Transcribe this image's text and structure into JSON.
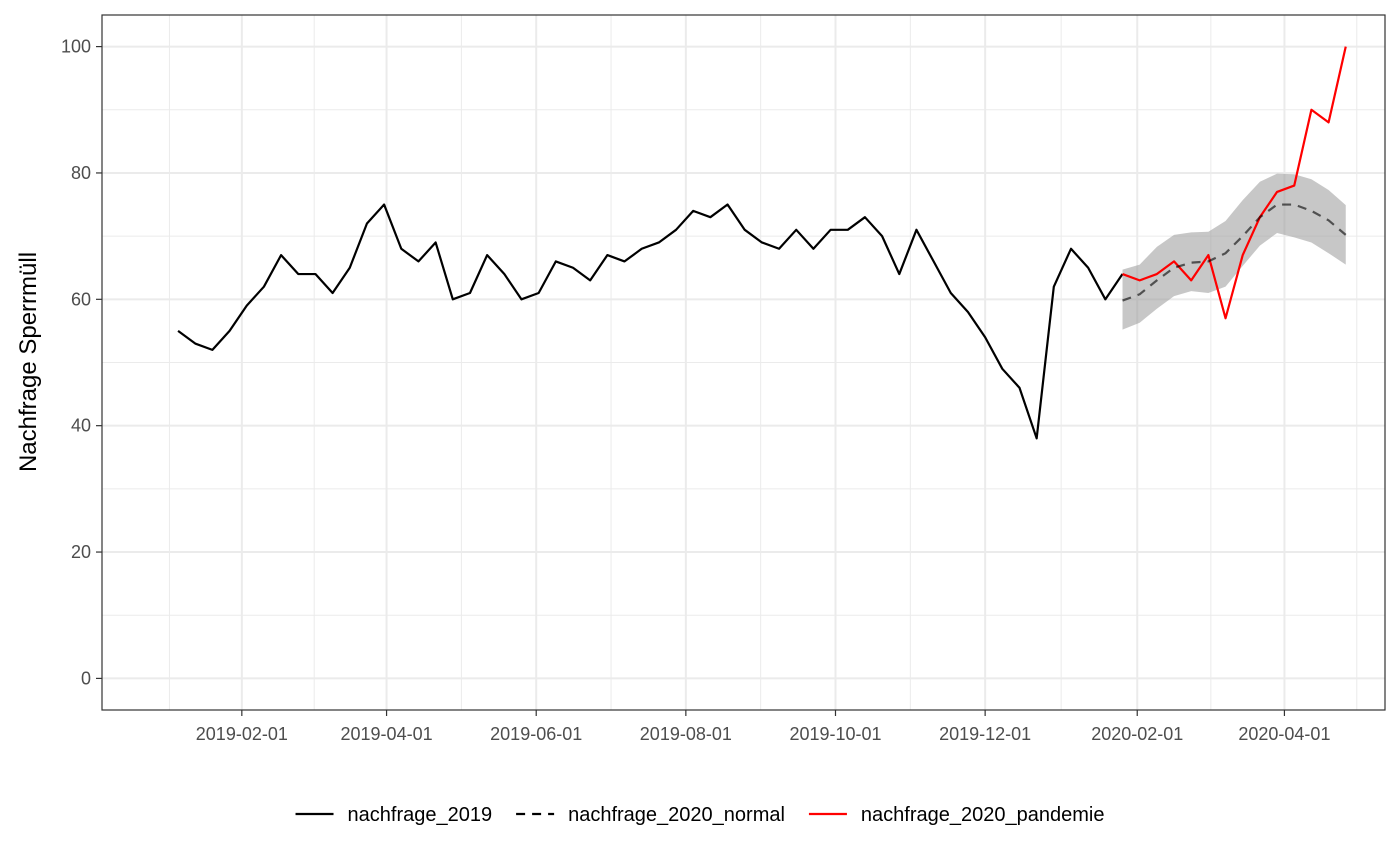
{
  "chart_data": {
    "type": "line",
    "title": "",
    "xlabel": "",
    "ylabel": "Nachfrage Sperrmüll",
    "x_axis": {
      "type": "date",
      "range": [
        "2018-12-06",
        "2020-05-12"
      ],
      "tick_labels": [
        "2019-02-01",
        "2019-04-01",
        "2019-06-01",
        "2019-08-01",
        "2019-10-01",
        "2019-12-01",
        "2020-02-01",
        "2020-04-01"
      ],
      "tick_dates": [
        "2019-02-01",
        "2019-04-01",
        "2019-06-01",
        "2019-08-01",
        "2019-10-01",
        "2019-12-01",
        "2020-02-01",
        "2020-04-01"
      ]
    },
    "y_axis": {
      "range": [
        -5,
        105
      ],
      "ticks": [
        0,
        20,
        40,
        60,
        80,
        100
      ],
      "tick_labels": [
        "0",
        "20",
        "40",
        "60",
        "80",
        "100"
      ]
    },
    "grid": true,
    "legend": {
      "position": "bottom",
      "entries": [
        {
          "name": "nachfrage_2019",
          "style": "solid",
          "color": "#000000"
        },
        {
          "name": "nachfrage_2020_normal",
          "style": "dashed",
          "color": "#000000"
        },
        {
          "name": "nachfrage_2020_pandemie",
          "style": "solid",
          "color": "#ff0000"
        }
      ]
    },
    "series": [
      {
        "name": "nachfrage_2019",
        "color": "#000000",
        "style": "solid",
        "points": [
          [
            "2019-01-06",
            55
          ],
          [
            "2019-01-13",
            53
          ],
          [
            "2019-01-20",
            52
          ],
          [
            "2019-01-27",
            55
          ],
          [
            "2019-02-03",
            59
          ],
          [
            "2019-02-10",
            62
          ],
          [
            "2019-02-17",
            67
          ],
          [
            "2019-02-24",
            64
          ],
          [
            "2019-03-03",
            64
          ],
          [
            "2019-03-10",
            61
          ],
          [
            "2019-03-17",
            65
          ],
          [
            "2019-03-24",
            72
          ],
          [
            "2019-03-31",
            75
          ],
          [
            "2019-04-07",
            68
          ],
          [
            "2019-04-14",
            66
          ],
          [
            "2019-04-21",
            69
          ],
          [
            "2019-04-28",
            60
          ],
          [
            "2019-05-05",
            61
          ],
          [
            "2019-05-12",
            67
          ],
          [
            "2019-05-19",
            64
          ],
          [
            "2019-05-26",
            60
          ],
          [
            "2019-06-02",
            61
          ],
          [
            "2019-06-09",
            66
          ],
          [
            "2019-06-16",
            65
          ],
          [
            "2019-06-23",
            63
          ],
          [
            "2019-06-30",
            67
          ],
          [
            "2019-07-07",
            66
          ],
          [
            "2019-07-14",
            68
          ],
          [
            "2019-07-21",
            69
          ],
          [
            "2019-07-28",
            71
          ],
          [
            "2019-08-04",
            74
          ],
          [
            "2019-08-11",
            73
          ],
          [
            "2019-08-18",
            75
          ],
          [
            "2019-08-25",
            71
          ],
          [
            "2019-09-01",
            69
          ],
          [
            "2019-09-08",
            68
          ],
          [
            "2019-09-15",
            71
          ],
          [
            "2019-09-22",
            68
          ],
          [
            "2019-09-29",
            71
          ],
          [
            "2019-10-06",
            71
          ],
          [
            "2019-10-13",
            73
          ],
          [
            "2019-10-20",
            70
          ],
          [
            "2019-10-27",
            64
          ],
          [
            "2019-11-03",
            71
          ],
          [
            "2019-11-10",
            66
          ],
          [
            "2019-11-17",
            61
          ],
          [
            "2019-11-24",
            58
          ],
          [
            "2019-12-01",
            54
          ],
          [
            "2019-12-08",
            49
          ],
          [
            "2019-12-15",
            46
          ],
          [
            "2019-12-22",
            38
          ],
          [
            "2019-12-29",
            62
          ],
          [
            "2020-01-05",
            68
          ],
          [
            "2020-01-12",
            65
          ],
          [
            "2020-01-19",
            60
          ],
          [
            "2020-01-26",
            64
          ]
        ]
      },
      {
        "name": "nachfrage_2020_normal",
        "color": "#000000",
        "style": "dashed",
        "opacity": 0.6,
        "points": [
          [
            "2020-01-26",
            59.8
          ],
          [
            "2020-02-02",
            60.8
          ],
          [
            "2020-02-09",
            63.0
          ],
          [
            "2020-02-16",
            65.0
          ],
          [
            "2020-02-23",
            65.8
          ],
          [
            "2020-03-01",
            66.0
          ],
          [
            "2020-03-08",
            67.3
          ],
          [
            "2020-03-15",
            70.0
          ],
          [
            "2020-03-22",
            73.0
          ],
          [
            "2020-03-29",
            75.0
          ],
          [
            "2020-04-05",
            75.0
          ],
          [
            "2020-04-12",
            74.0
          ],
          [
            "2020-04-19",
            72.5
          ],
          [
            "2020-04-26",
            70.2
          ]
        ],
        "ribbon_lower": [
          55.2,
          56.3,
          58.5,
          60.5,
          61.3,
          61.0,
          62.0,
          65.3,
          68.5,
          70.5,
          69.8,
          69.0,
          67.3,
          65.5
        ],
        "ribbon_upper": [
          64.7,
          65.5,
          68.3,
          70.2,
          70.6,
          70.7,
          72.4,
          75.7,
          78.6,
          79.9,
          79.8,
          79.0,
          77.3,
          74.9
        ]
      },
      {
        "name": "nachfrage_2020_pandemie",
        "color": "#ff0000",
        "style": "solid",
        "points": [
          [
            "2020-01-26",
            64
          ],
          [
            "2020-02-02",
            63
          ],
          [
            "2020-02-09",
            64
          ],
          [
            "2020-02-16",
            66
          ],
          [
            "2020-02-23",
            63
          ],
          [
            "2020-03-01",
            67
          ],
          [
            "2020-03-08",
            57
          ],
          [
            "2020-03-15",
            67
          ],
          [
            "2020-03-22",
            73
          ],
          [
            "2020-03-29",
            77
          ],
          [
            "2020-04-05",
            78
          ],
          [
            "2020-04-12",
            90
          ],
          [
            "2020-04-19",
            88
          ],
          [
            "2020-04-26",
            100
          ]
        ]
      }
    ]
  }
}
